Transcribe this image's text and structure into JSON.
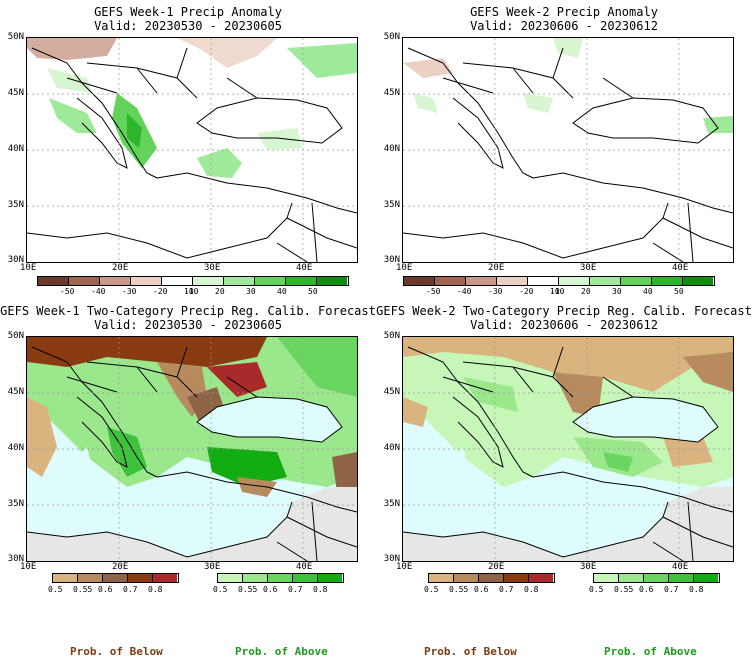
{
  "panels": [
    {
      "id": "w1-anom",
      "title": "GEFS Week-1 Precip Anomaly",
      "valid": "Valid: 20230530 - 20230605",
      "lat_labels": [
        "50N",
        "45N",
        "40N",
        "35N",
        "30N"
      ],
      "lon_labels": [
        "10E",
        "20E",
        "30E",
        "40E"
      ],
      "colorbar_ticks": [
        "-50",
        "-40",
        "-30",
        "-20",
        "-10",
        "10",
        "20",
        "30",
        "40",
        "50"
      ]
    },
    {
      "id": "w2-anom",
      "title": "GEFS Week-2 Precip Anomaly",
      "valid": "Valid: 20230606 - 20230612",
      "lat_labels": [
        "50N",
        "45N",
        "40N",
        "35N",
        "30N"
      ],
      "lon_labels": [
        "10E",
        "20E",
        "30E",
        "40E"
      ],
      "colorbar_ticks": [
        "-50",
        "-40",
        "-30",
        "-20",
        "-10",
        "10",
        "20",
        "30",
        "40",
        "50"
      ]
    },
    {
      "id": "w1-prob",
      "title": "GEFS Week-1 Two-Category Precip Reg. Calib. Forecast",
      "valid": "Valid: 20230530 - 20230605",
      "lat_labels": [
        "50N",
        "45N",
        "40N",
        "35N",
        "30N"
      ],
      "lon_labels": [
        "10E",
        "20E",
        "30E",
        "40E"
      ],
      "below_ticks": [
        "0.5",
        "0.55",
        "0.6",
        "0.7",
        "0.8"
      ],
      "above_ticks": [
        "0.5",
        "0.55",
        "0.6",
        "0.7",
        "0.8"
      ]
    },
    {
      "id": "w2-prob",
      "title": "GEFS Week-2 Two-Category Precip Reg. Calib. Forecast",
      "valid": "Valid: 20230606 - 20230612",
      "lat_labels": [
        "50N",
        "45N",
        "40N",
        "35N",
        "30N"
      ],
      "lon_labels": [
        "10E",
        "20E",
        "30E",
        "40E"
      ],
      "below_ticks": [
        "0.5",
        "0.55",
        "0.6",
        "0.7",
        "0.8"
      ],
      "above_ticks": [
        "0.5",
        "0.55",
        "0.6",
        "0.7",
        "0.8"
      ]
    }
  ],
  "legend": {
    "below_label": "Prob. of Below",
    "above_label": "Prob. of Above"
  },
  "colors": {
    "anom_bar": [
      "#6b3a2a",
      "#a0654e",
      "#c9988a",
      "#ecd0c4",
      "#ffffff",
      "#d6f5d0",
      "#9fea9a",
      "#62d45a",
      "#2db52b",
      "#0e8f10"
    ],
    "below_bar": [
      "#d9b47f",
      "#b78b5e",
      "#8f6446",
      "#8a3b12",
      "#a82a2a"
    ],
    "above_bar": [
      "#c6f7b9",
      "#9be88c",
      "#6bd65f",
      "#3fc23b",
      "#13ad13"
    ],
    "sea": "#dffcfc",
    "land_grey": "#e6e6e6",
    "title_below": "#7a3b10",
    "title_above": "#1f9a1f"
  }
}
